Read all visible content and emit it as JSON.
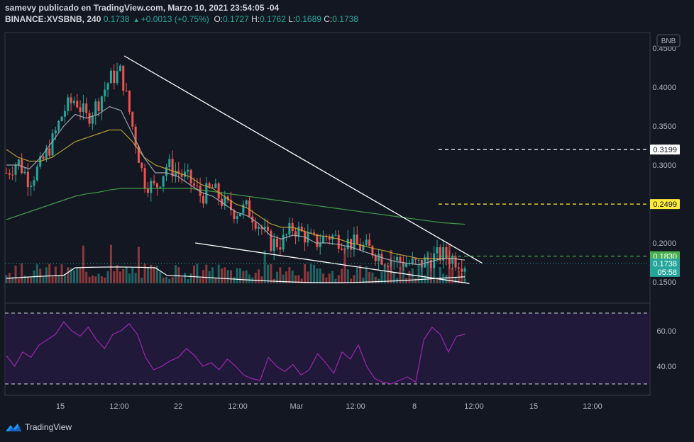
{
  "header": {
    "line1": "samevy publicado en TradingView.com, Marzo 10, 2021 23:54:05 -04",
    "symbol": "BINANCE:XVSBNB, 240",
    "last": "0.1738",
    "change": "+0.0013 (+0.75%)",
    "o_label": "O:",
    "o": "0.1727",
    "h_label": "H:",
    "h": "0.1762",
    "l_label": "L:",
    "l": "0.1689",
    "c_label": "C:",
    "c": "0.1738"
  },
  "footer": {
    "brand": "TradingView"
  },
  "chart_data": {
    "type": "candlestick",
    "currency_badge": "BNB",
    "x_ticks": [
      "15",
      "12:00",
      "22",
      "12:00",
      "Mar",
      "12:00",
      "8",
      "12:00",
      "15",
      "12:00"
    ],
    "price_axis": {
      "ticks": [
        "0.4500",
        "0.4000",
        "0.3500",
        "0.3000",
        "0.2000",
        "0.1500"
      ],
      "ylim": [
        0.13,
        0.47
      ]
    },
    "price_labels": [
      {
        "value": 0.3199,
        "text": "0.3199",
        "color": "#ffffff"
      },
      {
        "value": 0.2499,
        "text": "0.2499",
        "color": "#ffeb3b"
      },
      {
        "value": 0.183,
        "text": "0.1830",
        "color": "#4caf50"
      },
      {
        "value": 0.1738,
        "text": "0.1738",
        "countdown": "05:58",
        "color": "#26a69a"
      }
    ],
    "close_series_sampled": [
      0.29,
      0.305,
      0.28,
      0.3,
      0.33,
      0.37,
      0.385,
      0.36,
      0.38,
      0.41,
      0.42,
      0.35,
      0.28,
      0.27,
      0.3,
      0.29,
      0.28,
      0.26,
      0.27,
      0.25,
      0.24,
      0.245,
      0.225,
      0.2,
      0.2,
      0.22,
      0.21,
      0.2,
      0.21,
      0.205,
      0.2,
      0.195,
      0.19,
      0.18,
      0.178,
      0.174,
      0.172,
      0.18,
      0.185,
      0.18,
      0.1738
    ],
    "ma_fast_sampled": [
      0.3,
      0.3,
      0.295,
      0.31,
      0.33,
      0.35,
      0.365,
      0.36,
      0.365,
      0.375,
      0.37,
      0.34,
      0.31,
      0.29,
      0.29,
      0.285,
      0.275,
      0.265,
      0.26,
      0.25,
      0.24,
      0.235,
      0.225,
      0.21,
      0.205,
      0.21,
      0.208,
      0.2,
      0.2,
      0.198,
      0.195,
      0.19,
      0.185,
      0.18,
      0.176,
      0.174,
      0.172,
      0.176,
      0.18,
      0.18,
      0.178
    ],
    "ma_mid_sampled": [
      0.32,
      0.31,
      0.305,
      0.305,
      0.31,
      0.32,
      0.33,
      0.335,
      0.34,
      0.345,
      0.345,
      0.33,
      0.31,
      0.3,
      0.295,
      0.29,
      0.285,
      0.275,
      0.27,
      0.26,
      0.25,
      0.245,
      0.235,
      0.225,
      0.22,
      0.22,
      0.215,
      0.21,
      0.208,
      0.205,
      0.2,
      0.197,
      0.193,
      0.19,
      0.186,
      0.183,
      0.18,
      0.18,
      0.18,
      0.18,
      0.178
    ],
    "ma_slow_sampled": [
      0.23,
      0.235,
      0.24,
      0.245,
      0.25,
      0.255,
      0.26,
      0.263,
      0.265,
      0.268,
      0.27,
      0.27,
      0.27,
      0.27,
      0.27,
      0.27,
      0.27,
      0.268,
      0.266,
      0.264,
      0.262,
      0.26,
      0.258,
      0.256,
      0.254,
      0.252,
      0.25,
      0.248,
      0.246,
      0.244,
      0.242,
      0.24,
      0.238,
      0.236,
      0.234,
      0.232,
      0.23,
      0.228,
      0.226,
      0.225,
      0.224
    ],
    "trendlines": [
      {
        "from": [
          0.185,
          0.44
        ],
        "to": [
          0.74,
          0.174
        ]
      },
      {
        "from": [
          0.295,
          0.2
        ],
        "to": [
          0.72,
          0.148
        ]
      }
    ],
    "levels": [
      {
        "value": 0.3199,
        "color": "#ffffff"
      },
      {
        "value": 0.2499,
        "color": "#ffeb3b"
      },
      {
        "value": 0.183,
        "color": "#4caf50"
      }
    ],
    "rsi": {
      "ticks": [
        "60.00",
        "40.00"
      ],
      "overbought": 70,
      "oversold": 30,
      "values": [
        46,
        40,
        48,
        45,
        52,
        55,
        58,
        65,
        60,
        57,
        62,
        55,
        50,
        58,
        60,
        64,
        58,
        45,
        38,
        40,
        43,
        45,
        50,
        46,
        40,
        42,
        38,
        44,
        40,
        35,
        33,
        32,
        45,
        40,
        37,
        41,
        35,
        38,
        47,
        42,
        36,
        48,
        44,
        52,
        40,
        33,
        31,
        30,
        32,
        34,
        31,
        55,
        62,
        58,
        48,
        57,
        58
      ]
    }
  }
}
